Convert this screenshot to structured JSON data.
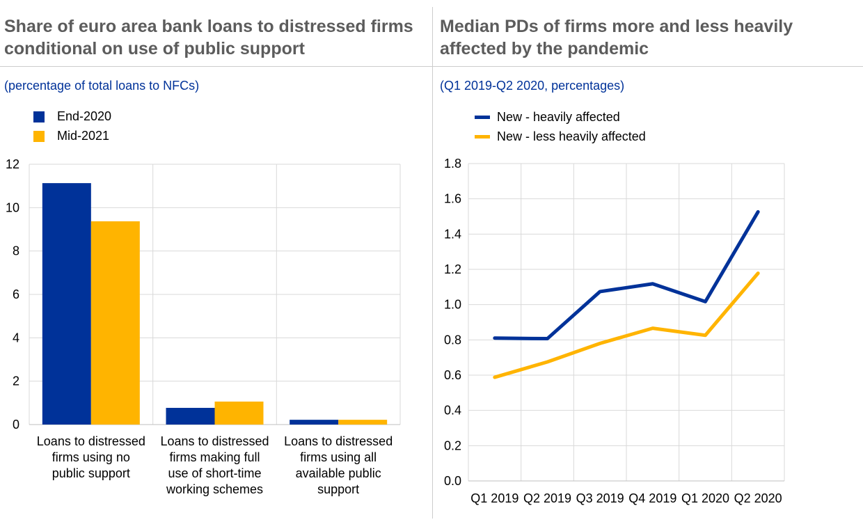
{
  "chart_data": [
    {
      "type": "bar",
      "title": "Share of euro area bank loans to distressed firms conditional on use of public support",
      "subtitle": "(percentage of total loans to NFCs)",
      "categories": [
        [
          "Loans to distressed",
          "firms using no",
          "public support"
        ],
        [
          "Loans to distressed",
          "firms making full",
          "use of short-time",
          "working schemes"
        ],
        [
          "Loans to distressed",
          "firms using all",
          "available public",
          "support"
        ]
      ],
      "series": [
        {
          "name": "End-2020",
          "color": "#003299",
          "values": [
            11.13,
            0.77,
            0.22
          ]
        },
        {
          "name": "Mid-2021",
          "color": "#ffb400",
          "values": [
            9.37,
            1.06,
            0.22
          ]
        }
      ],
      "ylim": [
        0,
        12
      ],
      "yticks": [
        "0",
        "2",
        "4",
        "6",
        "8",
        "10",
        "12"
      ],
      "legend": "top-left",
      "grid": true
    },
    {
      "type": "line",
      "title": "Median PDs of firms more and less heavily affected by the pandemic",
      "subtitle": "(Q1 2019-Q2 2020, percentages)",
      "categories": [
        "Q1 2019",
        "Q2 2019",
        "Q3 2019",
        "Q4 2019",
        "Q1 2020",
        "Q2 2020"
      ],
      "series": [
        {
          "name": "New - heavily affected",
          "color": "#003299",
          "values": [
            0.81,
            0.807,
            1.074,
            1.118,
            1.017,
            1.526
          ]
        },
        {
          "name": "New - less heavily affected",
          "color": "#ffb400",
          "values": [
            0.588,
            0.675,
            0.78,
            0.866,
            0.826,
            1.178
          ]
        }
      ],
      "ylim": [
        0,
        1.8
      ],
      "yticks": [
        "0.0",
        "0.2",
        "0.4",
        "0.6",
        "0.8",
        "1.0",
        "1.2",
        "1.4",
        "1.6",
        "1.8"
      ],
      "legend": "top-left",
      "grid": true
    }
  ]
}
